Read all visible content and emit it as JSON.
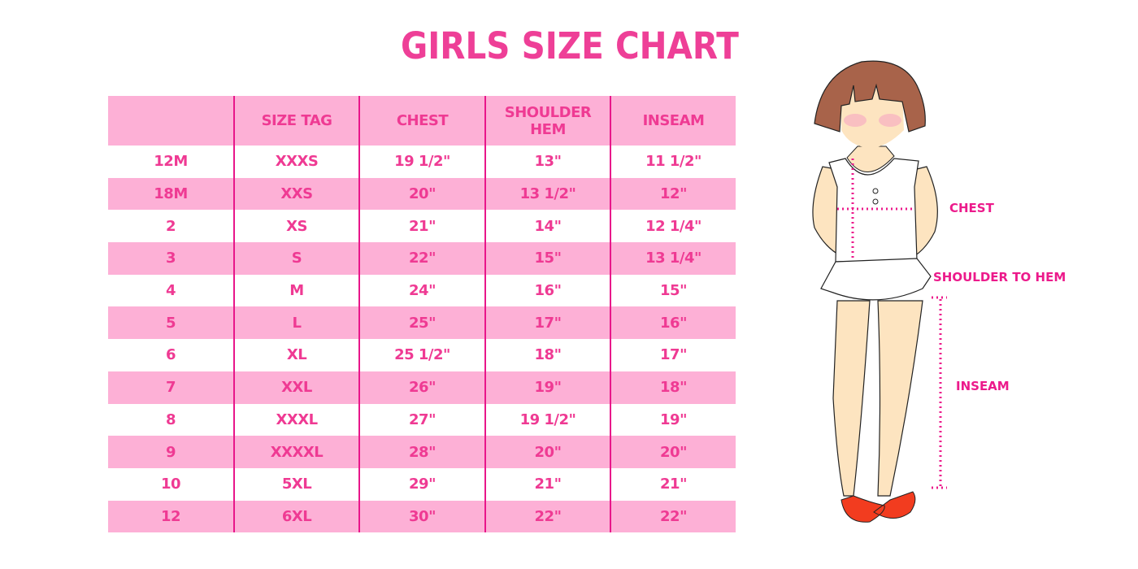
{
  "title": "GIRLS SIZE CHART",
  "table": {
    "headers": [
      "",
      "SIZE TAG",
      "CHEST",
      "SHOULDER HEM",
      "INSEAM"
    ],
    "rows": [
      [
        "12M",
        "XXXS",
        "19 1/2\"",
        "13\"",
        "11 1/2\""
      ],
      [
        "18M",
        "XXS",
        "20\"",
        "13 1/2\"",
        "12\""
      ],
      [
        "2",
        "XS",
        "21\"",
        "14\"",
        "12 1/4\""
      ],
      [
        "3",
        "S",
        "22\"",
        "15\"",
        "13 1/4\""
      ],
      [
        "4",
        "M",
        "24\"",
        "16\"",
        "15\""
      ],
      [
        "5",
        "L",
        "25\"",
        "17\"",
        "16\""
      ],
      [
        "6",
        "XL",
        "25 1/2\"",
        "18\"",
        "17\""
      ],
      [
        "7",
        "XXL",
        "26\"",
        "19\"",
        "18\""
      ],
      [
        "8",
        "XXXL",
        "27\"",
        "19 1/2\"",
        "19\""
      ],
      [
        "9",
        "XXXXL",
        "28\"",
        "20\"",
        "20\""
      ],
      [
        "10",
        "5XL",
        "29\"",
        "21\"",
        "21\""
      ],
      [
        "12",
        "6XL",
        "30\"",
        "22\"",
        "22\""
      ]
    ]
  },
  "diagram": {
    "labels": {
      "chest": "CHEST",
      "shoulder_to_hem": "SHOULDER TO HEM",
      "inseam": "INSEAM"
    }
  },
  "colors": {
    "accent": "#ee3f97",
    "row_fill": "#fdb0d6",
    "divider": "#e8168a"
  }
}
